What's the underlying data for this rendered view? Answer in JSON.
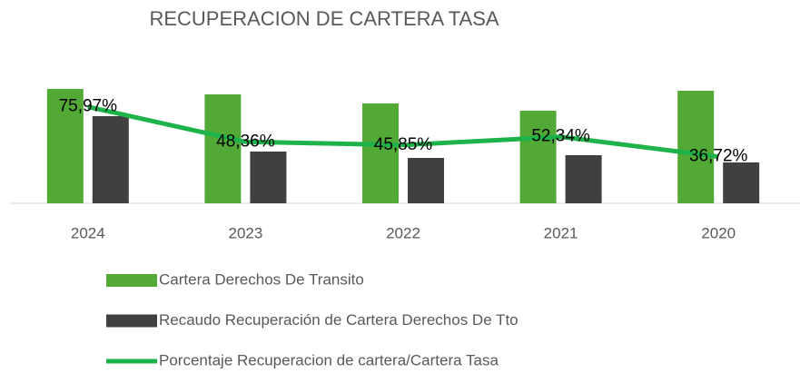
{
  "chart_data": {
    "type": "bar_line",
    "title": "RECUPERACION DE CARTERA TASA",
    "categories": [
      "2024",
      "2023",
      "2022",
      "2021",
      "2020"
    ],
    "series": [
      {
        "name": "Cartera Derechos De Transito",
        "color": "#52a935",
        "type": "bar",
        "values": [
          126,
          120,
          110,
          102,
          124
        ]
      },
      {
        "name": "Recaudo Recuperación de Cartera  Derechos De Tto",
        "color": "#404040",
        "type": "bar",
        "values": [
          96,
          57,
          50,
          53,
          45
        ]
      },
      {
        "name": "Porcentaje Recuperacion de cartera/Cartera Tasa",
        "color": "#1db34a",
        "type": "line",
        "axis": "y2",
        "values": [
          75.97,
          48.36,
          45.85,
          52.34,
          36.72
        ],
        "value_labels": [
          "75,97%",
          "48,36%",
          "45,85%",
          "52,34%",
          "36,72%"
        ]
      }
    ],
    "ylim": [
      0,
      140
    ],
    "y2lim": [
      0,
      100
    ],
    "legend": "bottom"
  }
}
